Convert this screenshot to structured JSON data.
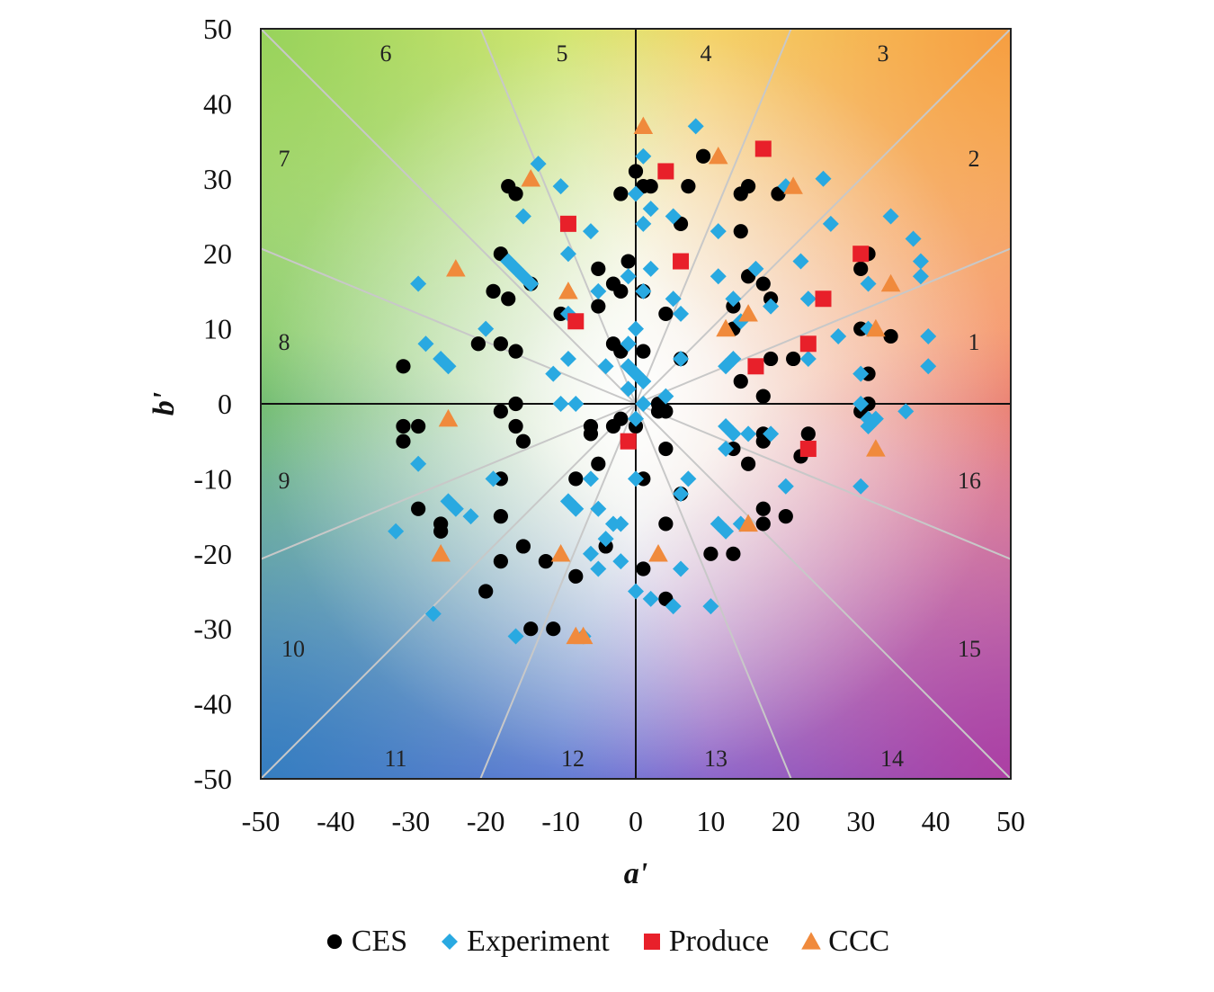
{
  "chart_data": {
    "type": "scatter",
    "title": "",
    "xlabel": "a'",
    "ylabel": "b'",
    "xlim": [
      -50,
      50
    ],
    "ylim": [
      -50,
      50
    ],
    "xticks": [
      "-50",
      "-40",
      "-30",
      "-20",
      "-10",
      "0",
      "10",
      "20",
      "30",
      "40",
      "50"
    ],
    "yticks": [
      "50",
      "40",
      "30",
      "20",
      "10",
      "0",
      "-10",
      "-20",
      "-30",
      "-40",
      "-50"
    ],
    "sector_labels": [
      "1",
      "2",
      "3",
      "4",
      "5",
      "6",
      "7",
      "8",
      "9",
      "10",
      "11",
      "12",
      "13",
      "14",
      "15",
      "16"
    ],
    "legend_position": "bottom",
    "series": [
      {
        "name": "CES",
        "color": "#000000",
        "marker": "circle",
        "points": [
          [
            0,
            31
          ],
          [
            1,
            29
          ],
          [
            2,
            29
          ],
          [
            -2,
            28
          ],
          [
            7,
            29
          ],
          [
            9,
            33
          ],
          [
            -17,
            29
          ],
          [
            -16,
            28
          ],
          [
            14,
            28
          ],
          [
            15,
            29
          ],
          [
            19,
            28
          ],
          [
            -18,
            20
          ],
          [
            -5,
            18
          ],
          [
            -3,
            16
          ],
          [
            -2,
            15
          ],
          [
            1,
            15
          ],
          [
            -1,
            19
          ],
          [
            4,
            12
          ],
          [
            6,
            24
          ],
          [
            14,
            23
          ],
          [
            15,
            17
          ],
          [
            17,
            16
          ],
          [
            18,
            14
          ],
          [
            13,
            13
          ],
          [
            13,
            10
          ],
          [
            -10,
            12
          ],
          [
            -19,
            15
          ],
          [
            -17,
            14
          ],
          [
            -14,
            16
          ],
          [
            -21,
            8
          ],
          [
            -18,
            8
          ],
          [
            -16,
            7
          ],
          [
            -31,
            5
          ],
          [
            -5,
            13
          ],
          [
            -3,
            8
          ],
          [
            -2,
            7
          ],
          [
            1,
            7
          ],
          [
            6,
            6
          ],
          [
            18,
            6
          ],
          [
            21,
            6
          ],
          [
            30,
            18
          ],
          [
            31,
            20
          ],
          [
            30,
            10
          ],
          [
            34,
            9
          ],
          [
            31,
            4
          ],
          [
            14,
            3
          ],
          [
            17,
            1
          ],
          [
            -16,
            0
          ],
          [
            -18,
            -1
          ],
          [
            -16,
            -3
          ],
          [
            -15,
            -5
          ],
          [
            -31,
            -3
          ],
          [
            -29,
            -3
          ],
          [
            -31,
            -5
          ],
          [
            -6,
            -3
          ],
          [
            -6,
            -4
          ],
          [
            -2,
            -2
          ],
          [
            -3,
            -3
          ],
          [
            0,
            -3
          ],
          [
            3,
            -1
          ],
          [
            3,
            0
          ],
          [
            4,
            -1
          ],
          [
            30,
            -1
          ],
          [
            31,
            0
          ],
          [
            23,
            -4
          ],
          [
            22,
            -7
          ],
          [
            17,
            -4
          ],
          [
            17,
            -5
          ],
          [
            13,
            -6
          ],
          [
            15,
            -8
          ],
          [
            4,
            -6
          ],
          [
            -5,
            -8
          ],
          [
            -8,
            -10
          ],
          [
            1,
            -10
          ],
          [
            -18,
            -10
          ],
          [
            -29,
            -14
          ],
          [
            -18,
            -15
          ],
          [
            -26,
            -16
          ],
          [
            -26,
            -17
          ],
          [
            -15,
            -19
          ],
          [
            -18,
            -21
          ],
          [
            -12,
            -21
          ],
          [
            -8,
            -23
          ],
          [
            -4,
            -19
          ],
          [
            1,
            -22
          ],
          [
            4,
            -16
          ],
          [
            6,
            -12
          ],
          [
            10,
            -20
          ],
          [
            13,
            -20
          ],
          [
            17,
            -14
          ],
          [
            17,
            -16
          ],
          [
            20,
            -15
          ],
          [
            -20,
            -25
          ],
          [
            -14,
            -30
          ],
          [
            -11,
            -30
          ],
          [
            4,
            -26
          ]
        ]
      },
      {
        "name": "Experiment",
        "color": "#29a9e1",
        "marker": "diamond",
        "points": [
          [
            8,
            37
          ],
          [
            1,
            33
          ],
          [
            -13,
            32
          ],
          [
            25,
            30
          ],
          [
            -10,
            29
          ],
          [
            20,
            29
          ],
          [
            0,
            28
          ],
          [
            2,
            26
          ],
          [
            -15,
            25
          ],
          [
            5,
            25
          ],
          [
            1,
            24
          ],
          [
            26,
            24
          ],
          [
            -6,
            23
          ],
          [
            11,
            23
          ],
          [
            34,
            25
          ],
          [
            37,
            22
          ],
          [
            -17,
            19
          ],
          [
            -16,
            18
          ],
          [
            -9,
            20
          ],
          [
            2,
            18
          ],
          [
            16,
            18
          ],
          [
            22,
            19
          ],
          [
            38,
            19
          ],
          [
            -15,
            17
          ],
          [
            -14,
            16
          ],
          [
            -29,
            16
          ],
          [
            -1,
            17
          ],
          [
            11,
            17
          ],
          [
            -5,
            15
          ],
          [
            1,
            15
          ],
          [
            5,
            14
          ],
          [
            6,
            12
          ],
          [
            13,
            14
          ],
          [
            23,
            14
          ],
          [
            18,
            13
          ],
          [
            31,
            16
          ],
          [
            38,
            17
          ],
          [
            -9,
            12
          ],
          [
            -20,
            10
          ],
          [
            -28,
            8
          ],
          [
            -26,
            6
          ],
          [
            -25,
            5
          ],
          [
            -9,
            6
          ],
          [
            -4,
            5
          ],
          [
            -1,
            5
          ],
          [
            0,
            10
          ],
          [
            -1,
            8
          ],
          [
            6,
            6
          ],
          [
            12,
            5
          ],
          [
            13,
            6
          ],
          [
            14,
            11
          ],
          [
            27,
            9
          ],
          [
            31,
            10
          ],
          [
            30,
            4
          ],
          [
            23,
            6
          ],
          [
            39,
            9
          ],
          [
            39,
            5
          ],
          [
            -10,
            0
          ],
          [
            -11,
            4
          ],
          [
            -8,
            0
          ],
          [
            -1,
            2
          ],
          [
            0,
            -2
          ],
          [
            1,
            0
          ],
          [
            0,
            4
          ],
          [
            1,
            3
          ],
          [
            4,
            1
          ],
          [
            12,
            -3
          ],
          [
            13,
            -4
          ],
          [
            15,
            -4
          ],
          [
            18,
            -4
          ],
          [
            30,
            0
          ],
          [
            31,
            -2
          ],
          [
            31,
            -3
          ],
          [
            32,
            -2
          ],
          [
            36,
            -1
          ],
          [
            30,
            -11
          ],
          [
            20,
            -11
          ],
          [
            12,
            -6
          ],
          [
            7,
            -10
          ],
          [
            -19,
            -10
          ],
          [
            -29,
            -8
          ],
          [
            -25,
            -13
          ],
          [
            -24,
            -14
          ],
          [
            -22,
            -15
          ],
          [
            -32,
            -17
          ],
          [
            -9,
            -13
          ],
          [
            -8,
            -14
          ],
          [
            -5,
            -14
          ],
          [
            -6,
            -10
          ],
          [
            -3,
            -16
          ],
          [
            -2,
            -16
          ],
          [
            -4,
            -18
          ],
          [
            -2,
            -21
          ],
          [
            -6,
            -20
          ],
          [
            -5,
            -22
          ],
          [
            0,
            -10
          ],
          [
            6,
            -12
          ],
          [
            12,
            -17
          ],
          [
            11,
            -16
          ],
          [
            -27,
            -28
          ],
          [
            -16,
            -31
          ],
          [
            -7,
            -31
          ],
          [
            0,
            -25
          ],
          [
            2,
            -26
          ],
          [
            5,
            -27
          ],
          [
            10,
            -27
          ],
          [
            6,
            -22
          ],
          [
            14,
            -16
          ]
        ]
      },
      {
        "name": "Produce",
        "color": "#e8202a",
        "marker": "square",
        "points": [
          [
            17,
            34
          ],
          [
            4,
            31
          ],
          [
            -9,
            24
          ],
          [
            6,
            19
          ],
          [
            30,
            20
          ],
          [
            25,
            14
          ],
          [
            -8,
            11
          ],
          [
            23,
            8
          ],
          [
            16,
            5
          ],
          [
            -1,
            -5
          ],
          [
            23,
            -6
          ]
        ]
      },
      {
        "name": "CCC",
        "color": "#f08a3c",
        "marker": "triangle",
        "points": [
          [
            1,
            37
          ],
          [
            11,
            33
          ],
          [
            21,
            29
          ],
          [
            -14,
            30
          ],
          [
            -24,
            18
          ],
          [
            -9,
            15
          ],
          [
            15,
            12
          ],
          [
            12,
            10
          ],
          [
            34,
            16
          ],
          [
            32,
            10
          ],
          [
            -25,
            -2
          ],
          [
            32,
            -6
          ],
          [
            15,
            -16
          ],
          [
            -26,
            -20
          ],
          [
            -10,
            -20
          ],
          [
            3,
            -20
          ],
          [
            -8,
            -31
          ],
          [
            -7,
            -31
          ]
        ]
      }
    ]
  }
}
